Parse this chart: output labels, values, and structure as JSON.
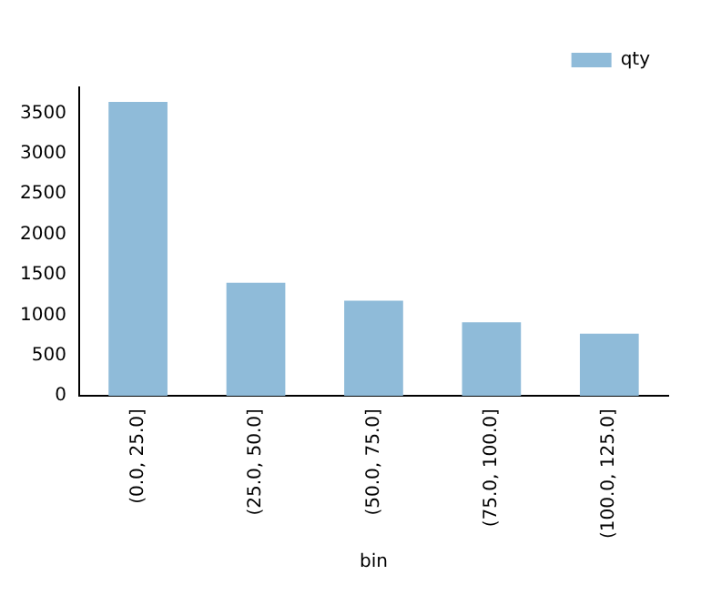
{
  "chart_data": {
    "type": "bar",
    "xlabel": "bin",
    "categories": [
      "(0.0, 25.0]",
      "(25.0, 50.0]",
      "(50.0, 75.0]",
      "(75.0, 100.0]",
      "(100.0, 125.0]"
    ],
    "series": [
      {
        "name": "qty",
        "color": "#8fbbd9",
        "values": [
          3640,
          1400,
          1180,
          910,
          770
        ]
      }
    ],
    "ylim": [
      0,
      3820
    ],
    "yticks": [
      0,
      500,
      1000,
      1500,
      2000,
      2500,
      3000,
      3500
    ],
    "grid": false,
    "legend": "top right"
  }
}
